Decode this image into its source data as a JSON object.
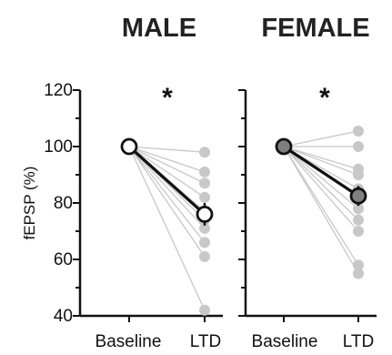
{
  "chart_data": {
    "type": "scatter",
    "ylabel": "fEPSP (%)",
    "ylim": [
      40,
      120
    ],
    "yticks": [
      "40",
      "60",
      "80",
      "100",
      "120"
    ],
    "categories": [
      "Baseline",
      "LTD"
    ],
    "panels": [
      {
        "title": "MALE",
        "significance": "*",
        "individual_color": "#c8c8c8",
        "mean_fill": "#ffffff",
        "individual": [
          [
            100,
            98
          ],
          [
            100,
            91
          ],
          [
            100,
            87
          ],
          [
            100,
            82
          ],
          [
            100,
            77
          ],
          [
            100,
            74
          ],
          [
            100,
            71
          ],
          [
            100,
            66
          ],
          [
            100,
            61
          ],
          [
            100,
            42
          ]
        ],
        "mean": [
          100,
          76
        ],
        "mean_error": 4
      },
      {
        "title": "FEMALE",
        "significance": "*",
        "individual_color": "#c8c8c8",
        "mean_fill": "#7f7f7f",
        "individual": [
          [
            100,
            105.5
          ],
          [
            100,
            100
          ],
          [
            100,
            92
          ],
          [
            100,
            90
          ],
          [
            100,
            85
          ],
          [
            100,
            82
          ],
          [
            100,
            78
          ],
          [
            100,
            74
          ],
          [
            100,
            70
          ],
          [
            100,
            58
          ],
          [
            100,
            55
          ]
        ],
        "mean": [
          100,
          82.5
        ],
        "mean_error": 3.5
      }
    ]
  }
}
